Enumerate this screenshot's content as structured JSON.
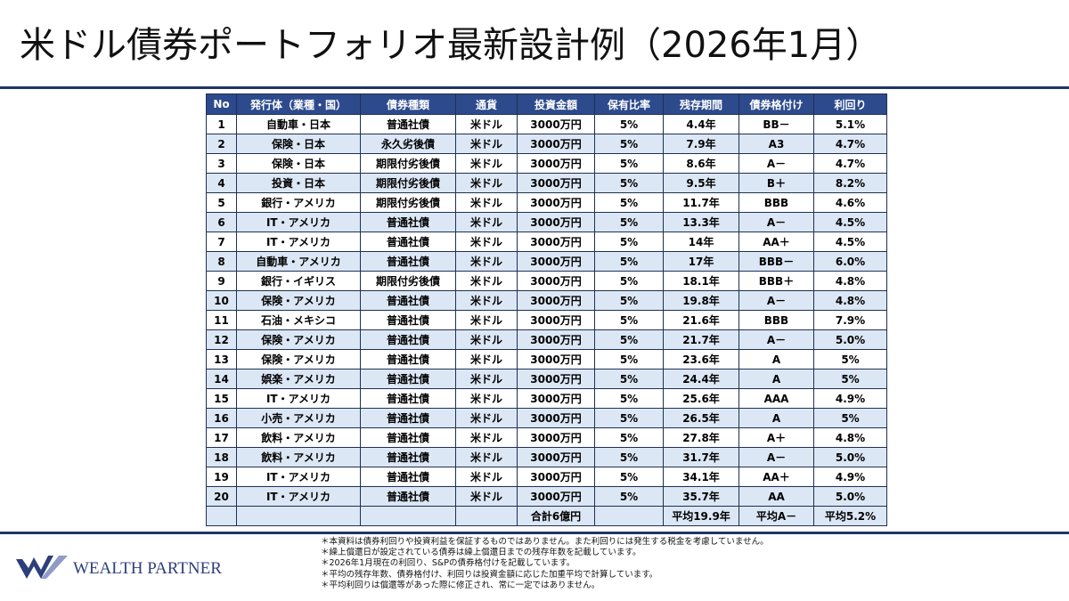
{
  "title": "米ドル債券ポートフォリオ最新設計例（2026年1月）",
  "table": {
    "header": [
      "No",
      "発行体（業種・国）",
      "債券種類",
      "通貨",
      "投資金額",
      "保有比率",
      "残存期間",
      "債券格付け",
      "利回り"
    ],
    "rows": [
      [
        "1",
        "自動車・日本",
        "普通社債",
        "米ドル",
        "3000万円",
        "5%",
        "4.4年",
        "BB－",
        "5.1%"
      ],
      [
        "2",
        "保険・日本",
        "永久劣後債",
        "米ドル",
        "3000万円",
        "5%",
        "7.9年",
        "A3",
        "4.7%"
      ],
      [
        "3",
        "保険・日本",
        "期限付劣後債",
        "米ドル",
        "3000万円",
        "5%",
        "8.6年",
        "A－",
        "4.7%"
      ],
      [
        "4",
        "投資・日本",
        "期限付劣後債",
        "米ドル",
        "3000万円",
        "5%",
        "9.5年",
        "B＋",
        "8.2%"
      ],
      [
        "5",
        "銀行・アメリカ",
        "期限付劣後債",
        "米ドル",
        "3000万円",
        "5%",
        "11.7年",
        "BBB",
        "4.6%"
      ],
      [
        "6",
        "IT・アメリカ",
        "普通社債",
        "米ドル",
        "3000万円",
        "5%",
        "13.3年",
        "A－",
        "4.5%"
      ],
      [
        "7",
        "IT・アメリカ",
        "普通社債",
        "米ドル",
        "3000万円",
        "5%",
        "14年",
        "AA＋",
        "4.5%"
      ],
      [
        "8",
        "自動車・アメリカ",
        "普通社債",
        "米ドル",
        "3000万円",
        "5%",
        "17年",
        "BBB－",
        "6.0%"
      ],
      [
        "9",
        "銀行・イギリス",
        "期限付劣後債",
        "米ドル",
        "3000万円",
        "5%",
        "18.1年",
        "BBB＋",
        "4.8%"
      ],
      [
        "10",
        "保険・アメリカ",
        "普通社債",
        "米ドル",
        "3000万円",
        "5%",
        "19.8年",
        "A－",
        "4.8%"
      ],
      [
        "11",
        "石油・メキシコ",
        "普通社債",
        "米ドル",
        "3000万円",
        "5%",
        "21.6年",
        "BBB",
        "7.9%"
      ],
      [
        "12",
        "保険・アメリカ",
        "普通社債",
        "米ドル",
        "3000万円",
        "5%",
        "21.7年",
        "A－",
        "5.0%"
      ],
      [
        "13",
        "保険・アメリカ",
        "普通社債",
        "米ドル",
        "3000万円",
        "5%",
        "23.6年",
        "A",
        "5%"
      ],
      [
        "14",
        "娯楽・アメリカ",
        "普通社債",
        "米ドル",
        "3000万円",
        "5%",
        "24.4年",
        "A",
        "5%"
      ],
      [
        "15",
        "IT・アメリカ",
        "普通社債",
        "米ドル",
        "3000万円",
        "5%",
        "25.6年",
        "AAA",
        "4.9%"
      ],
      [
        "16",
        "小売・アメリカ",
        "普通社債",
        "米ドル",
        "3000万円",
        "5%",
        "26.5年",
        "A",
        "5%"
      ],
      [
        "17",
        "飲料・アメリカ",
        "普通社債",
        "米ドル",
        "3000万円",
        "5%",
        "27.8年",
        "A＋",
        "4.8%"
      ],
      [
        "18",
        "飲料・アメリカ",
        "普通社債",
        "米ドル",
        "3000万円",
        "5%",
        "31.7年",
        "A－",
        "5.0%"
      ],
      [
        "19",
        "IT・アメリカ",
        "普通社債",
        "米ドル",
        "3000万円",
        "5%",
        "34.1年",
        "AA＋",
        "4.9%"
      ],
      [
        "20",
        "IT・アメリカ",
        "普通社債",
        "米ドル",
        "3000万円",
        "5%",
        "35.7年",
        "AA",
        "5.0%"
      ]
    ],
    "summary": {
      "amount": "合計6億円",
      "term": "平均19.9年",
      "rating": "平均A－",
      "yield": "平均5.2%"
    }
  },
  "notes": [
    "＊本資料は債券利回りや投資利益を保証するものではありません。また利回りには発生する税金を考慮していません。",
    "＊繰上償還日が設定されている債券は繰上償還日までの残存年数を記載しています。",
    "＊2026年1月現在の利回り、S&Pの債券格付けを記載しています。",
    "＊平均の残存年数、債券格付け、利回りは投資金額に応じた加重平均で計算しています。",
    "＊平均利回りは償還等があった際に修正され、常に一定ではありません。"
  ],
  "logo": "WEALTH PARTNER"
}
